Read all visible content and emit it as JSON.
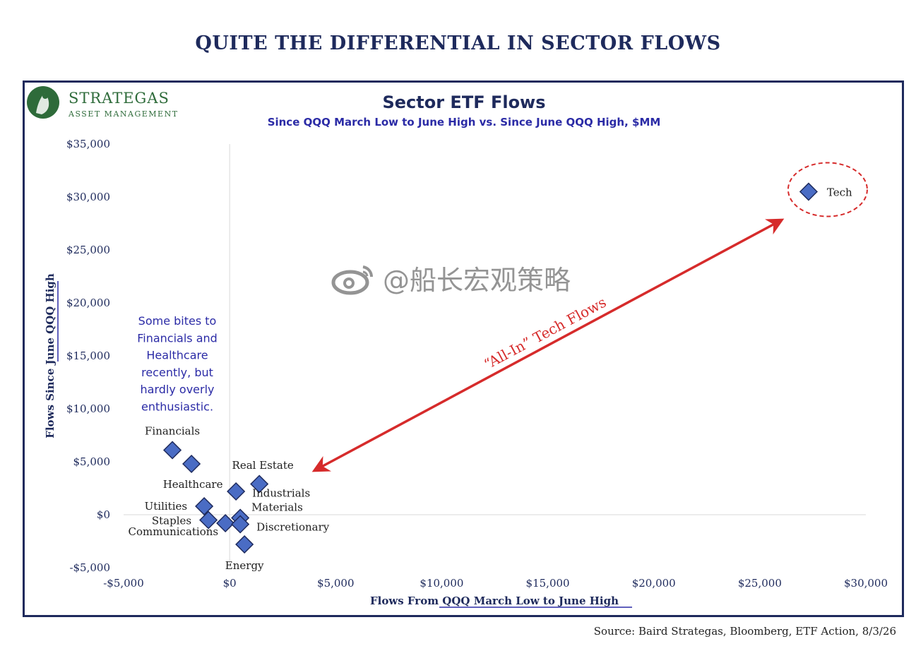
{
  "headline": "QUITE THE DIFFERENTIAL IN SECTOR FLOWS",
  "logo": {
    "name": "STRATEGAS",
    "sub": "ASSET MANAGEMENT"
  },
  "source": "Source: Baird Strategas, Bloomberg, ETF Action, 8/3/26",
  "watermark": "@船长宏观策略",
  "colors": {
    "navy": "#1e2a5c",
    "marker": "#4a6cc4",
    "annotation": "#d62b2b",
    "note": "#2b2ba6"
  },
  "chart_data": {
    "type": "scatter",
    "title": "Sector ETF Flows",
    "subtitle": "Since QQQ March Low to June High vs. Since June QQQ High, $MM",
    "xlabel": "Flows From QQQ March Low to June High",
    "ylabel": "Flows Since June QQQ High",
    "xlim": [
      -5000,
      30000
    ],
    "ylim": [
      -5000,
      35000
    ],
    "x_ticks": [
      -5000,
      0,
      5000,
      10000,
      15000,
      20000,
      25000,
      30000
    ],
    "y_ticks": [
      -5000,
      0,
      5000,
      10000,
      15000,
      20000,
      25000,
      30000,
      35000
    ],
    "x_tick_labels": [
      "-$5,000",
      "$0",
      "$5,000",
      "$10,000",
      "$15,000",
      "$20,000",
      "$25,000",
      "$30,000"
    ],
    "y_tick_labels": [
      "-$5,000",
      "$0",
      "$5,000",
      "$10,000",
      "$15,000",
      "$20,000",
      "$25,000",
      "$30,000",
      "$35,000"
    ],
    "grid": false,
    "points": [
      {
        "name": "Tech",
        "x": 27300,
        "y": 30500
      },
      {
        "name": "Financials",
        "x": -2700,
        "y": 6100
      },
      {
        "name": "Healthcare",
        "x": -1800,
        "y": 4800
      },
      {
        "name": "Real Estate",
        "x": 300,
        "y": 2200
      },
      {
        "name": "Industrials",
        "x": 1400,
        "y": 2900
      },
      {
        "name": "Utilities",
        "x": -1200,
        "y": 800
      },
      {
        "name": "Staples",
        "x": -1000,
        "y": -500
      },
      {
        "name": "Communications",
        "x": -200,
        "y": -800
      },
      {
        "name": "Materials",
        "x": 500,
        "y": -300
      },
      {
        "name": "Discretionary",
        "x": 500,
        "y": -900
      },
      {
        "name": "Energy",
        "x": 700,
        "y": -2800
      }
    ],
    "annotations": {
      "arrow_label": "“All-In” Tech Flows",
      "note": [
        "Some bites to",
        "Financials and",
        "Healthcare",
        "recently, but",
        "hardly overly",
        "enthusiastic."
      ]
    }
  }
}
